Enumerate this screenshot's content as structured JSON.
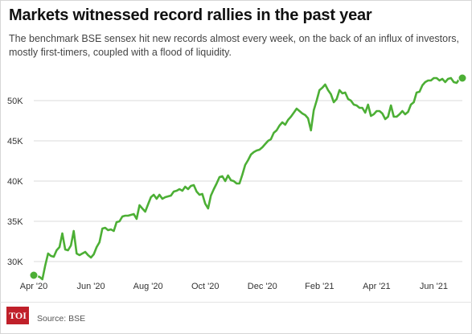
{
  "header": {
    "title": "Markets witnessed record rallies in the past year",
    "subtitle": "The benchmark BSE sensex hit new records almost every week, on the back of an influx of investors, mostly first-timers, coupled with a flood of liquidity."
  },
  "footer": {
    "logo_text": "TOI",
    "source": "Source: BSE"
  },
  "colors": {
    "line": "#4caf35",
    "logo": "#c0202a"
  },
  "chart_data": {
    "type": "line",
    "title": "",
    "xlabel": "",
    "ylabel": "",
    "ylim": [
      28000,
      54500
    ],
    "xlim": [
      0,
      15.0
    ],
    "grid": "horizontal",
    "yticks": [
      30000,
      35000,
      40000,
      45000,
      50000
    ],
    "ytick_labels": [
      "30K",
      "35K",
      "40K",
      "45K",
      "50K"
    ],
    "xticks": [
      0,
      2,
      4,
      6,
      8,
      10,
      12,
      14
    ],
    "xtick_labels": [
      "Apr '20",
      "Jun '20",
      "Aug '20",
      "Oct '20",
      "Dec '20",
      "Feb '21",
      "Apr '21",
      "Jun '21"
    ],
    "x_unit": "months since Apr '20",
    "endpoints_marked": true,
    "series": [
      {
        "name": "",
        "x": [
          0.0,
          0.1,
          0.2,
          0.3,
          0.4,
          0.5,
          0.6,
          0.7,
          0.8,
          0.9,
          1.0,
          1.1,
          1.2,
          1.3,
          1.4,
          1.5,
          1.6,
          1.7,
          1.8,
          1.9,
          2.0,
          2.1,
          2.2,
          2.3,
          2.4,
          2.5,
          2.6,
          2.7,
          2.8,
          2.9,
          3.0,
          3.1,
          3.2,
          3.3,
          3.4,
          3.5,
          3.6,
          3.7,
          3.8,
          3.9,
          4.0,
          4.1,
          4.2,
          4.3,
          4.4,
          4.5,
          4.6,
          4.7,
          4.8,
          4.9,
          5.0,
          5.1,
          5.2,
          5.3,
          5.4,
          5.5,
          5.6,
          5.7,
          5.8,
          5.9,
          6.0,
          6.1,
          6.2,
          6.3,
          6.4,
          6.5,
          6.6,
          6.7,
          6.8,
          6.9,
          7.0,
          7.1,
          7.2,
          7.3,
          7.4,
          7.5,
          7.6,
          7.7,
          7.8,
          7.9,
          8.0,
          8.1,
          8.2,
          8.3,
          8.4,
          8.5,
          8.6,
          8.7,
          8.8,
          8.9,
          9.0,
          9.1,
          9.2,
          9.3,
          9.4,
          9.5,
          9.6,
          9.7,
          9.8,
          9.9,
          10.0,
          10.1,
          10.2,
          10.3,
          10.4,
          10.5,
          10.6,
          10.7,
          10.8,
          10.9,
          11.0,
          11.1,
          11.2,
          11.3,
          11.4,
          11.5,
          11.6,
          11.7,
          11.8,
          11.9,
          12.0,
          12.1,
          12.2,
          12.3,
          12.4,
          12.5,
          12.6,
          12.7,
          12.8,
          12.9,
          13.0,
          13.1,
          13.2,
          13.3,
          13.4,
          13.5,
          13.6,
          13.7,
          13.8,
          13.9,
          14.0,
          14.1,
          14.2,
          14.3,
          14.4,
          14.5,
          14.6,
          14.7,
          14.8,
          14.9,
          15.0
        ],
        "values": [
          28300,
          28200,
          28100,
          27800,
          29500,
          31000,
          30700,
          30600,
          31400,
          31800,
          33500,
          31500,
          31400,
          32000,
          33800,
          31000,
          30800,
          31000,
          31200,
          30800,
          30500,
          30900,
          31800,
          32400,
          34100,
          34200,
          33900,
          34000,
          33800,
          34900,
          35000,
          35600,
          35700,
          35700,
          35800,
          35900,
          35300,
          37000,
          36600,
          36200,
          37100,
          38000,
          38300,
          37800,
          38300,
          37800,
          38000,
          38100,
          38200,
          38700,
          38800,
          39000,
          38800,
          39300,
          39000,
          39400,
          39500,
          38700,
          38300,
          38400,
          37200,
          36600,
          38200,
          39000,
          39700,
          40500,
          40600,
          40000,
          40700,
          40100,
          40000,
          39700,
          39700,
          40800,
          42000,
          42600,
          43300,
          43600,
          43800,
          43900,
          44200,
          44600,
          45000,
          45200,
          46000,
          46300,
          46900,
          47300,
          47000,
          47600,
          48000,
          48500,
          49000,
          48700,
          48400,
          48200,
          47800,
          46300,
          48800,
          50000,
          51300,
          51600,
          52000,
          51300,
          50800,
          49800,
          50200,
          51300,
          50900,
          51000,
          50200,
          50000,
          49500,
          49400,
          49100,
          49100,
          48500,
          49500,
          48100,
          48300,
          48700,
          48700,
          48400,
          47700,
          48000,
          49400,
          48000,
          48000,
          48300,
          48700,
          48300,
          48600,
          49500,
          49800,
          51000,
          51100,
          51900,
          52300,
          52500,
          52500,
          52800,
          52800,
          52500,
          52700,
          52300,
          52700,
          52800,
          52300,
          52200,
          52700,
          52800
        ]
      }
    ]
  }
}
